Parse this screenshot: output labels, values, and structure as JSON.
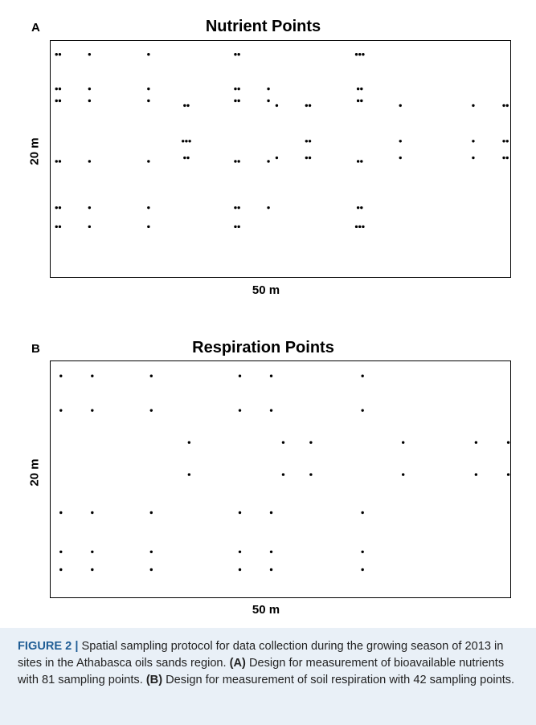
{
  "panel_a": {
    "letter": "A",
    "title": "Nutrient Points",
    "ylabel": "20 m",
    "xlabel": "50 m"
  },
  "panel_b": {
    "letter": "B",
    "title": "Respiration Points",
    "ylabel": "20 m",
    "xlabel": "50 m"
  },
  "caption": {
    "lead": "FIGURE 2 |",
    "text1": " Spatial sampling protocol for data collection during the growing season of 2013 in sites in the Athabasca oils sands region. ",
    "tag_a": "(A)",
    "text2": " Design for measurement of bioavailable nutrients with 81 sampling points. ",
    "tag_b": "(B)",
    "text3": " Design for measurement of soil respiration with 42 sampling points."
  },
  "chart_data": [
    {
      "type": "scatter",
      "title": "Nutrient Points",
      "xlabel": "50 m",
      "ylabel": "20 m",
      "xlim": [
        0,
        50
      ],
      "ylim": [
        0,
        20
      ],
      "groups": [
        {
          "x": 0.9,
          "y": 18.8,
          "n": 2
        },
        {
          "x": 4.3,
          "y": 18.8,
          "n": 1
        },
        {
          "x": 10.7,
          "y": 18.8,
          "n": 1
        },
        {
          "x": 20.3,
          "y": 18.8,
          "n": 2
        },
        {
          "x": 33.6,
          "y": 18.8,
          "n": 3
        },
        {
          "x": 0.9,
          "y": 15.9,
          "n": 2
        },
        {
          "x": 4.3,
          "y": 15.9,
          "n": 1
        },
        {
          "x": 10.7,
          "y": 15.9,
          "n": 1
        },
        {
          "x": 20.3,
          "y": 15.9,
          "n": 2
        },
        {
          "x": 23.7,
          "y": 15.9,
          "n": 1
        },
        {
          "x": 33.6,
          "y": 15.9,
          "n": 2
        },
        {
          "x": 0.9,
          "y": 14.9,
          "n": 2
        },
        {
          "x": 4.3,
          "y": 14.9,
          "n": 1
        },
        {
          "x": 10.7,
          "y": 14.9,
          "n": 1
        },
        {
          "x": 20.3,
          "y": 14.9,
          "n": 2
        },
        {
          "x": 23.7,
          "y": 14.9,
          "n": 1
        },
        {
          "x": 33.6,
          "y": 14.9,
          "n": 2
        },
        {
          "x": 14.8,
          "y": 14.5,
          "n": 2
        },
        {
          "x": 24.6,
          "y": 14.5,
          "n": 1
        },
        {
          "x": 28.0,
          "y": 14.5,
          "n": 2
        },
        {
          "x": 38.0,
          "y": 14.5,
          "n": 1
        },
        {
          "x": 45.9,
          "y": 14.5,
          "n": 1
        },
        {
          "x": 49.4,
          "y": 14.5,
          "n": 2
        },
        {
          "x": 14.8,
          "y": 11.5,
          "n": 3
        },
        {
          "x": 28.0,
          "y": 11.5,
          "n": 2
        },
        {
          "x": 38.0,
          "y": 11.5,
          "n": 1
        },
        {
          "x": 45.9,
          "y": 11.5,
          "n": 1
        },
        {
          "x": 49.4,
          "y": 11.5,
          "n": 2
        },
        {
          "x": 14.8,
          "y": 10.1,
          "n": 2
        },
        {
          "x": 24.6,
          "y": 10.1,
          "n": 1
        },
        {
          "x": 28.0,
          "y": 10.1,
          "n": 2
        },
        {
          "x": 38.0,
          "y": 10.1,
          "n": 1
        },
        {
          "x": 45.9,
          "y": 10.1,
          "n": 1
        },
        {
          "x": 49.4,
          "y": 10.1,
          "n": 2
        },
        {
          "x": 0.9,
          "y": 9.8,
          "n": 2
        },
        {
          "x": 4.3,
          "y": 9.8,
          "n": 1
        },
        {
          "x": 10.7,
          "y": 9.8,
          "n": 1
        },
        {
          "x": 20.3,
          "y": 9.8,
          "n": 2
        },
        {
          "x": 23.7,
          "y": 9.8,
          "n": 1
        },
        {
          "x": 33.6,
          "y": 9.8,
          "n": 2
        },
        {
          "x": 0.9,
          "y": 5.9,
          "n": 2
        },
        {
          "x": 4.3,
          "y": 5.9,
          "n": 1
        },
        {
          "x": 10.7,
          "y": 5.9,
          "n": 1
        },
        {
          "x": 20.3,
          "y": 5.9,
          "n": 2
        },
        {
          "x": 23.7,
          "y": 5.9,
          "n": 1
        },
        {
          "x": 33.6,
          "y": 5.9,
          "n": 2
        },
        {
          "x": 0.9,
          "y": 4.3,
          "n": 2
        },
        {
          "x": 4.3,
          "y": 4.3,
          "n": 1
        },
        {
          "x": 10.7,
          "y": 4.3,
          "n": 1
        },
        {
          "x": 20.3,
          "y": 4.3,
          "n": 2
        },
        {
          "x": 33.6,
          "y": 4.3,
          "n": 3
        }
      ]
    },
    {
      "type": "scatter",
      "title": "Respiration Points",
      "xlabel": "50 m",
      "ylabel": "20 m",
      "xlim": [
        0,
        50
      ],
      "ylim": [
        0,
        20
      ],
      "groups": [
        {
          "x": 1.2,
          "y": 18.7,
          "n": 1
        },
        {
          "x": 4.6,
          "y": 18.7,
          "n": 1
        },
        {
          "x": 11.0,
          "y": 18.7,
          "n": 1
        },
        {
          "x": 20.6,
          "y": 18.7,
          "n": 1
        },
        {
          "x": 24.0,
          "y": 18.7,
          "n": 1
        },
        {
          "x": 33.9,
          "y": 18.7,
          "n": 1
        },
        {
          "x": 1.2,
          "y": 15.8,
          "n": 1
        },
        {
          "x": 4.6,
          "y": 15.8,
          "n": 1
        },
        {
          "x": 11.0,
          "y": 15.8,
          "n": 1
        },
        {
          "x": 20.6,
          "y": 15.8,
          "n": 1
        },
        {
          "x": 24.0,
          "y": 15.8,
          "n": 1
        },
        {
          "x": 33.9,
          "y": 15.8,
          "n": 1
        },
        {
          "x": 15.1,
          "y": 13.1,
          "n": 1
        },
        {
          "x": 25.3,
          "y": 13.1,
          "n": 1
        },
        {
          "x": 28.3,
          "y": 13.1,
          "n": 1
        },
        {
          "x": 38.3,
          "y": 13.1,
          "n": 1
        },
        {
          "x": 46.2,
          "y": 13.1,
          "n": 1
        },
        {
          "x": 49.7,
          "y": 13.1,
          "n": 1
        },
        {
          "x": 15.1,
          "y": 10.4,
          "n": 1
        },
        {
          "x": 25.3,
          "y": 10.4,
          "n": 1
        },
        {
          "x": 28.3,
          "y": 10.4,
          "n": 1
        },
        {
          "x": 38.3,
          "y": 10.4,
          "n": 1
        },
        {
          "x": 46.2,
          "y": 10.4,
          "n": 1
        },
        {
          "x": 49.7,
          "y": 10.4,
          "n": 1
        },
        {
          "x": 1.2,
          "y": 7.2,
          "n": 1
        },
        {
          "x": 4.6,
          "y": 7.2,
          "n": 1
        },
        {
          "x": 11.0,
          "y": 7.2,
          "n": 1
        },
        {
          "x": 20.6,
          "y": 7.2,
          "n": 1
        },
        {
          "x": 24.0,
          "y": 7.2,
          "n": 1
        },
        {
          "x": 33.9,
          "y": 7.2,
          "n": 1
        },
        {
          "x": 1.2,
          "y": 3.9,
          "n": 1
        },
        {
          "x": 4.6,
          "y": 3.9,
          "n": 1
        },
        {
          "x": 11.0,
          "y": 3.9,
          "n": 1
        },
        {
          "x": 20.6,
          "y": 3.9,
          "n": 1
        },
        {
          "x": 24.0,
          "y": 3.9,
          "n": 1
        },
        {
          "x": 33.9,
          "y": 3.9,
          "n": 1
        },
        {
          "x": 1.2,
          "y": 2.4,
          "n": 1
        },
        {
          "x": 4.6,
          "y": 2.4,
          "n": 1
        },
        {
          "x": 11.0,
          "y": 2.4,
          "n": 1
        },
        {
          "x": 20.6,
          "y": 2.4,
          "n": 1
        },
        {
          "x": 24.0,
          "y": 2.4,
          "n": 1
        },
        {
          "x": 33.9,
          "y": 2.4,
          "n": 1
        }
      ]
    }
  ]
}
